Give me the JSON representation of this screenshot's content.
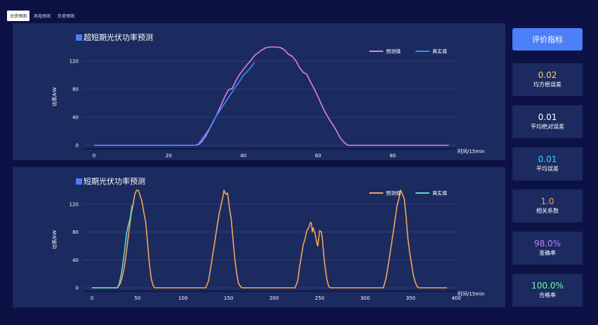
{
  "tabs": [
    {
      "label": "光伏预测",
      "active": true
    },
    {
      "label": "风电预测",
      "active": false
    },
    {
      "label": "负荷预测",
      "active": false
    }
  ],
  "sidebar": {
    "eval_button": "评价指标",
    "metrics": [
      {
        "value": "0.02",
        "label": "均方根误差",
        "color": "#f7d26a"
      },
      {
        "value": "0.01",
        "label": "平均绝对误差",
        "color": "#ffffff"
      },
      {
        "value": "0.01",
        "label": "平均误差",
        "color": "#38d6ff"
      },
      {
        "value": "1.0",
        "label": "相关系数",
        "color": "#ffa14a"
      },
      {
        "value": "98.0%",
        "label": "准确率",
        "color": "#b782ff"
      },
      {
        "value": "100.0%",
        "label": "合格率",
        "color": "#6dffa5"
      }
    ]
  },
  "chart_data": [
    {
      "type": "line",
      "title": "超短期光伏功率预测",
      "xlabel": "时间/15min",
      "ylabel": "功率/kW",
      "xlim": [
        -3,
        97
      ],
      "ylim": [
        -5,
        143
      ],
      "xticks": [
        "0",
        "20",
        "40",
        "60",
        "80"
      ],
      "xtick_values": [
        0,
        20,
        40,
        60,
        80
      ],
      "yticks": [
        "0",
        "40",
        "80",
        "120"
      ],
      "ytick_values": [
        0,
        40,
        80,
        120
      ],
      "legend_position": "top-right",
      "series": [
        {
          "name": "预测值",
          "color": "#e27cf5",
          "x": [
            0,
            27,
            28,
            29,
            30,
            31,
            32,
            33,
            34,
            35,
            36,
            37,
            38,
            39,
            40,
            41,
            42,
            43,
            44,
            45,
            46,
            47,
            48,
            49,
            50,
            51,
            52,
            53,
            54,
            55,
            56,
            57,
            58,
            59,
            60,
            61,
            62,
            63,
            64,
            65,
            66,
            67,
            68,
            69,
            70,
            95
          ],
          "y": [
            0,
            0,
            1,
            6,
            14,
            24,
            34,
            45,
            57,
            69,
            79,
            81,
            92,
            101,
            108,
            115,
            121,
            128,
            132,
            136,
            139,
            140,
            140,
            140,
            139,
            136,
            130,
            127,
            121,
            111,
            104,
            101,
            90,
            80,
            69,
            57,
            46,
            37,
            29,
            20,
            10,
            4,
            0,
            0,
            0,
            0
          ]
        },
        {
          "name": "真实值",
          "color": "#3d8cf0",
          "x": [
            0,
            27,
            28,
            29,
            30,
            31,
            32,
            33,
            34,
            35,
            36,
            37,
            38,
            39,
            40,
            41,
            42,
            43
          ],
          "y": [
            0,
            0,
            2,
            10,
            17,
            25,
            35,
            44,
            52,
            60,
            68,
            76,
            84,
            91,
            100,
            105,
            111,
            118
          ]
        }
      ]
    },
    {
      "type": "line",
      "title": "短期光伏功率预测",
      "xlabel": "时间/15min",
      "ylabel": "功率/kW",
      "xlim": [
        -10,
        400
      ],
      "ylim": [
        -5,
        143
      ],
      "xticks": [
        "0",
        "50",
        "100",
        "150",
        "200",
        "250",
        "300",
        "350",
        "400"
      ],
      "xtick_values": [
        0,
        50,
        100,
        150,
        200,
        250,
        300,
        350,
        400
      ],
      "yticks": [
        "0",
        "40",
        "80",
        "120"
      ],
      "ytick_values": [
        0,
        40,
        80,
        120
      ],
      "legend_position": "top-right",
      "series": [
        {
          "name": "预测值",
          "color": "#f2a55a",
          "x": [
            0,
            28,
            31,
            33,
            35,
            37,
            39,
            41,
            43,
            45,
            47,
            49,
            51,
            53,
            55,
            57,
            59,
            61,
            63,
            65,
            67,
            69,
            71,
            125,
            128,
            131,
            134,
            137,
            140,
            142,
            144,
            145,
            147,
            149,
            151,
            153,
            155,
            157,
            159,
            161,
            163,
            165,
            223,
            226,
            228,
            230,
            232,
            234,
            236,
            238,
            239,
            240,
            241,
            242,
            243,
            245,
            247,
            248,
            250,
            252,
            253,
            255,
            258,
            260,
            262,
            320,
            323,
            326,
            329,
            332,
            335,
            337,
            339,
            341,
            343,
            345,
            347,
            349,
            351,
            353,
            355,
            357,
            359,
            361,
            363,
            365,
            390
          ],
          "y": [
            0,
            0,
            6,
            14,
            26,
            42,
            64,
            85,
            105,
            118,
            134,
            140,
            140,
            132,
            124,
            108,
            95,
            66,
            36,
            14,
            4,
            0,
            0,
            0,
            10,
            34,
            58,
            84,
            108,
            120,
            132,
            140,
            134,
            136,
            114,
            98,
            68,
            40,
            20,
            6,
            2,
            0,
            0,
            10,
            30,
            46,
            62,
            70,
            82,
            86,
            90,
            94,
            93,
            80,
            86,
            78,
            64,
            60,
            82,
            80,
            70,
            40,
            12,
            2,
            0,
            0,
            14,
            38,
            64,
            90,
            118,
            128,
            140,
            134,
            128,
            102,
            70,
            50,
            34,
            18,
            8,
            2,
            0,
            0,
            0,
            0,
            0
          ]
        },
        {
          "name": "真实值",
          "color": "#63d3c0",
          "x": [
            0,
            28,
            30,
            32,
            34,
            36,
            38,
            40,
            42,
            44
          ],
          "y": [
            0,
            0,
            6,
            18,
            35,
            55,
            78,
            90,
            100,
            118
          ]
        }
      ]
    }
  ]
}
